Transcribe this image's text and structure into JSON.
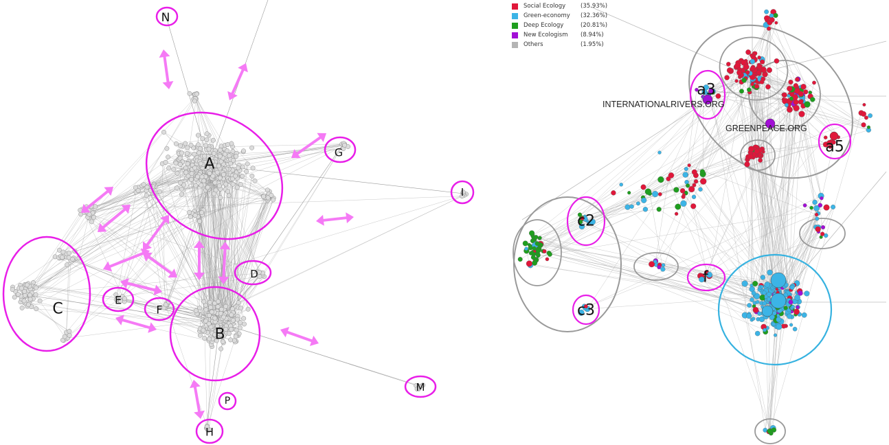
{
  "legend": [
    {
      "name": "Social Ecology",
      "pct": "(35.93%)",
      "color": "#e0173a"
    },
    {
      "name": "Green-economy",
      "pct": "(32.36%)",
      "color": "#3cb4e6"
    },
    {
      "name": "Deep Ecology",
      "pct": "(20.81%)",
      "color": "#1f9e1f"
    },
    {
      "name": "New Ecologism",
      "pct": "(8.94%)",
      "color": "#a20fd6"
    },
    {
      "name": "Others",
      "pct": "(1.95%)",
      "color": "#b4b4b4"
    }
  ],
  "left_clusters": [
    "N",
    "G",
    "A",
    "I",
    "C",
    "E",
    "F",
    "D",
    "B",
    "M",
    "P",
    "H"
  ],
  "right_cluster_labels": [
    "a3",
    "a5",
    "c2",
    "c3",
    "f"
  ],
  "site_labels": [
    "INTERNATIONALRIVERS.ORG",
    "GREENPEACE.ORG"
  ],
  "colors": {
    "highlight": "#e81ee8",
    "arrow": "#f57af5",
    "node_gray": "#dcdcdc",
    "edge": "#9a9a9a",
    "cluster_gray": "#999999",
    "cluster_blue": "#36b2e0"
  }
}
